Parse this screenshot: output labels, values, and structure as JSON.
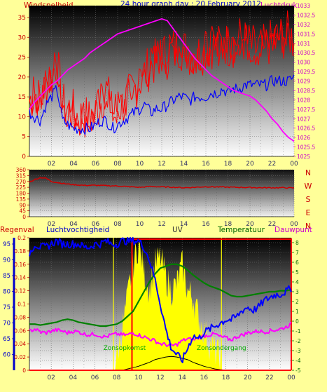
{
  "colors": {
    "background": "#ffff99",
    "wind_gust": "#ff0000",
    "wind_avg": "#0000ff",
    "pressure": "#ff00ff",
    "direction": "#cc0000",
    "humidity": "#0000ff",
    "temperature": "#008000",
    "dewpoint": "#ff00ff",
    "uv": "#ffff00",
    "solar": "#000000",
    "rain": "#ff0000",
    "sunrise_line": "#ffff00",
    "sunset_line": "#ffff00"
  },
  "header": {
    "left_label": "Windsnelheid",
    "title": "24 hour graph day : 20 February 2012",
    "right_label": "Luchtdruk"
  },
  "x_ticks": [
    "02",
    "04",
    "06",
    "08",
    "10",
    "12",
    "14",
    "16",
    "18",
    "20",
    "22",
    "00"
  ],
  "chart_data": [
    {
      "type": "line",
      "id": "wind_pressure",
      "x_hours": [
        0,
        0.5,
        1,
        1.5,
        2,
        2.5,
        3,
        3.5,
        4,
        4.5,
        5,
        5.5,
        6,
        6.5,
        7,
        7.5,
        8,
        8.5,
        9,
        9.5,
        10,
        10.5,
        11,
        11.5,
        12,
        12.5,
        13,
        13.5,
        14,
        14.5,
        15,
        15.5,
        16,
        16.5,
        17,
        17.5,
        18,
        18.5,
        19,
        19.5,
        20,
        20.5,
        21,
        21.5,
        22,
        22.5,
        23,
        23.5,
        24
      ],
      "ylim_left": [
        0,
        38
      ],
      "y_ticks_left": [
        0,
        5,
        10,
        15,
        20,
        25,
        30,
        35
      ],
      "ylim_right": [
        1025,
        1033
      ],
      "y_ticks_right": [
        1025,
        1025.5,
        1026,
        1026.5,
        1027,
        1027.5,
        1028,
        1028.5,
        1029,
        1029.5,
        1030,
        1030.5,
        1031,
        1031.5,
        1032,
        1032.5,
        1033
      ],
      "series": [
        {
          "role": "wind_gust",
          "values": [
            14,
            16,
            14,
            18,
            20,
            24,
            13,
            12,
            11,
            10,
            10,
            9,
            11,
            14,
            17,
            11,
            12,
            13,
            15,
            17,
            19,
            21,
            23,
            24,
            26,
            25,
            27,
            28,
            27,
            26,
            26,
            26,
            27,
            28,
            27,
            29,
            28,
            28,
            30,
            29,
            28,
            27,
            27,
            28,
            29,
            30,
            30,
            31,
            29
          ]
        },
        {
          "role": "wind_avg",
          "values": [
            11,
            10,
            9,
            13,
            15,
            17,
            9,
            8,
            7,
            7,
            7,
            7,
            8,
            9,
            9,
            7,
            8,
            9,
            10,
            11,
            12,
            13,
            11,
            12,
            12,
            13,
            14,
            15,
            15,
            14,
            15,
            15,
            15,
            16,
            16,
            17,
            16,
            17,
            17,
            18,
            18,
            18,
            18,
            18,
            19,
            19,
            19,
            19,
            20
          ]
        },
        {
          "role": "pressure",
          "values": [
            1027.5,
            1027.9,
            1028.2,
            1028.5,
            1028.8,
            1029.0,
            1029.3,
            1029.6,
            1029.8,
            1030.0,
            1030.2,
            1030.5,
            1030.7,
            1030.9,
            1031.1,
            1031.3,
            1031.5,
            1031.6,
            1031.7,
            1031.8,
            1031.9,
            1032.0,
            1032.1,
            1032.2,
            1032.3,
            1032.2,
            1031.8,
            1031.4,
            1031.0,
            1030.6,
            1030.2,
            1029.9,
            1029.6,
            1029.3,
            1029.1,
            1028.9,
            1028.7,
            1028.5,
            1028.4,
            1028.3,
            1028.2,
            1028.0,
            1027.7,
            1027.4,
            1027.0,
            1026.7,
            1026.3,
            1026.0,
            1025.8
          ]
        }
      ]
    },
    {
      "type": "line",
      "id": "wind_direction",
      "x_hours": [
        0,
        0.5,
        1,
        1.5,
        2,
        3,
        4,
        5,
        6,
        7,
        8,
        9,
        10,
        11,
        12,
        13,
        14,
        15,
        16,
        17,
        18,
        19,
        20,
        21,
        22,
        23,
        24
      ],
      "ylim": [
        0,
        360
      ],
      "y_ticks": [
        0,
        45,
        90,
        135,
        180,
        225,
        270,
        315,
        360
      ],
      "compass_labels": [
        "N",
        "W",
        "S",
        "E",
        "N"
      ],
      "series": [
        {
          "role": "direction",
          "values": [
            265,
            285,
            300,
            295,
            270,
            255,
            245,
            240,
            240,
            238,
            235,
            230,
            225,
            232,
            228,
            226,
            222,
            225,
            230,
            228,
            226,
            225,
            224,
            222,
            222,
            222,
            220
          ]
        }
      ]
    },
    {
      "type": "line",
      "id": "rain_hum_uv_temp",
      "labels": {
        "rain": "Regenval",
        "humidity": "Luchtvochtigheid",
        "uv": "UV",
        "temperature": "Temperatuur",
        "dewpoint": "Dauwpunt"
      },
      "sunrise_label": "Zonsopkomst",
      "sunset_label": "Zonsondergang",
      "sunrise_hour": 7.7,
      "sunset_hour": 17.6,
      "rain_start_hour": 9.4,
      "ylim_rain": [
        0,
        0.2
      ],
      "y_ticks_rain": [
        0,
        0.02,
        0.04,
        0.06,
        0.08,
        0.1,
        0.12,
        0.14,
        0.16,
        0.18,
        0.2
      ],
      "ylim_hum": [
        55,
        97
      ],
      "y_ticks_hum": [
        60,
        65,
        70,
        75,
        80,
        85,
        90,
        95
      ],
      "ylim_temp": [
        -5,
        8.5
      ],
      "y_ticks_temp": [
        -5,
        -4,
        -3,
        -2,
        -1,
        0,
        1,
        2,
        3,
        4,
        5,
        6,
        7,
        8
      ],
      "x_hours": [
        0,
        0.5,
        1,
        1.5,
        2,
        2.5,
        3,
        3.5,
        4,
        4.5,
        5,
        5.5,
        6,
        6.5,
        7,
        7.5,
        8,
        8.5,
        9,
        9.5,
        10,
        10.5,
        11,
        11.5,
        12,
        12.5,
        13,
        13.5,
        14,
        14.5,
        15,
        15.5,
        16,
        16.5,
        17,
        17.5,
        18,
        18.5,
        19,
        19.5,
        20,
        20.5,
        21,
        21.5,
        22,
        22.5,
        23,
        23.5,
        24
      ],
      "series": [
        {
          "role": "humidity",
          "values": [
            92,
            95,
            94,
            94,
            95,
            96,
            95,
            95,
            95,
            95,
            94,
            94,
            95,
            95,
            96,
            95,
            95,
            96,
            96,
            96,
            96,
            94,
            90,
            84,
            76,
            68,
            62,
            60,
            58,
            62,
            66,
            65,
            67,
            68,
            69,
            70,
            71,
            71,
            72,
            74,
            75,
            74,
            75,
            77,
            78,
            79,
            79,
            80,
            81
          ]
        },
        {
          "role": "temperature",
          "values": [
            -0.3,
            -0.3,
            -0.4,
            -0.3,
            -0.2,
            -0.1,
            0.1,
            0.2,
            0.1,
            -0.1,
            -0.2,
            -0.3,
            -0.4,
            -0.5,
            -0.5,
            -0.4,
            -0.3,
            0.0,
            0.5,
            1.0,
            2.0,
            3.0,
            4.0,
            4.8,
            5.4,
            5.6,
            5.8,
            5.8,
            5.6,
            5.2,
            4.7,
            4.3,
            3.9,
            3.6,
            3.4,
            3.2,
            2.9,
            2.6,
            2.5,
            2.5,
            2.6,
            2.7,
            2.8,
            2.9,
            3.0,
            3.0,
            3.1,
            3.1,
            3.2
          ]
        },
        {
          "role": "dewpoint",
          "values": [
            -1.0,
            -0.8,
            -1.1,
            -1.2,
            -1.0,
            -0.9,
            -1.0,
            -1.2,
            -1.0,
            -1.1,
            -1.3,
            -1.4,
            -1.3,
            -1.5,
            -1.6,
            -1.4,
            -1.3,
            -1.4,
            -1.4,
            -1.2,
            -1.4,
            -1.6,
            -1.8,
            -2.0,
            -2.3,
            -2.4,
            -2.5,
            -2.4,
            -2.0,
            -1.8,
            -1.9,
            -1.7,
            -1.5,
            -1.4,
            -1.3,
            -1.6,
            -1.7,
            -1.9,
            -1.6,
            -1.4,
            -1.2,
            -1.1,
            -1.0,
            -1.1,
            -1.0,
            -0.9,
            -0.8,
            -0.6,
            -0.3
          ]
        },
        {
          "role": "uv",
          "values": [
            0,
            0,
            0,
            0,
            0,
            0,
            0,
            0,
            0,
            0,
            0,
            0,
            0,
            0,
            0,
            0,
            0.02,
            0.06,
            0.11,
            0.16,
            0.19,
            0.15,
            0.12,
            0.16,
            0.17,
            0.14,
            0.12,
            0.13,
            0.16,
            0.12,
            0.11,
            0.08,
            0.06,
            0.04,
            0.03,
            0.02,
            0,
            0,
            0,
            0,
            0,
            0,
            0,
            0,
            0,
            0,
            0,
            0,
            0
          ]
        },
        {
          "role": "solar",
          "values": [
            0,
            0,
            0,
            0,
            0,
            0,
            0,
            0,
            0,
            0,
            0,
            0,
            0,
            0,
            0,
            0,
            0,
            0,
            0.002,
            0.004,
            0.006,
            0.009,
            0.012,
            0.016,
            0.018,
            0.02,
            0.021,
            0.02,
            0.018,
            0.016,
            0.012,
            0.009,
            0.006,
            0.004,
            0.002,
            0.001,
            0,
            0,
            0,
            0,
            0,
            0,
            0,
            0,
            0,
            0,
            0,
            0,
            0
          ]
        },
        {
          "role": "rain",
          "values": [
            0,
            0,
            0,
            0,
            0,
            0,
            0,
            0,
            0,
            0,
            0,
            0,
            0,
            0,
            0,
            0,
            0,
            0,
            0,
            0.2,
            0.2,
            0.2,
            0.2,
            0.2,
            0.2,
            0.2,
            0.2,
            0.2,
            0.2,
            0.2,
            0.2,
            0.2,
            0.2,
            0.2,
            0.2,
            0.2,
            0.2,
            0.2,
            0.2,
            0.2,
            0.2,
            0.2,
            0.2,
            0.2,
            0.2,
            0.2,
            0.2,
            0.2,
            0.2
          ]
        }
      ]
    }
  ]
}
